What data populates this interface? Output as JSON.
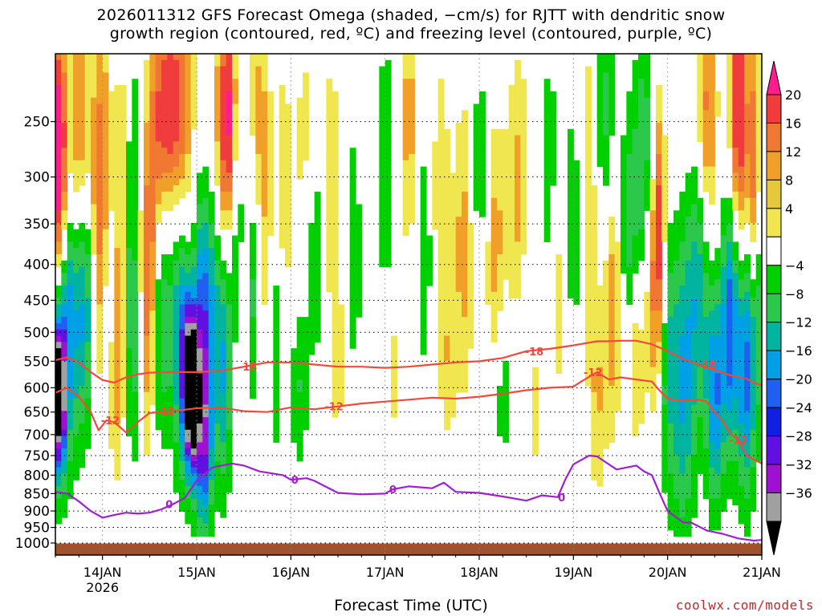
{
  "title": {
    "line1": "2026011312 GFS Forecast Omega (shaded, −cm/s) for RJTT with dendritic snow",
    "line2": "growth region (contoured, red, ºC) and freezing level (contoured, purple, ºC)"
  },
  "credit": "coolwx.com/models",
  "colors": {
    "dgz_contour": "#f04a3c",
    "freezing_contour": "#a020d0",
    "ground": "#a0522d",
    "grid": "#808080"
  },
  "chart_data": {
    "type": "heatmap",
    "xlabel": "Forecast Time (UTC)",
    "ylabel": "",
    "ylim": [
      1000,
      200
    ],
    "y_ticks": [
      250,
      300,
      350,
      400,
      450,
      500,
      550,
      600,
      650,
      700,
      750,
      800,
      850,
      900,
      950,
      1000
    ],
    "x_range_hours": [
      0,
      180
    ],
    "x_ticks": [
      {
        "hour": 12,
        "label": "14JAN",
        "sublabel": "2026"
      },
      {
        "hour": 36,
        "label": "15JAN"
      },
      {
        "hour": 60,
        "label": "16JAN"
      },
      {
        "hour": 84,
        "label": "17JAN"
      },
      {
        "hour": 108,
        "label": "18JAN"
      },
      {
        "hour": 132,
        "label": "19JAN"
      },
      {
        "hour": 156,
        "label": "20JAN"
      },
      {
        "hour": 180,
        "label": "21JAN"
      }
    ],
    "colorbar": {
      "labels": [
        "20",
        "16",
        "12",
        "8",
        "4",
        "−4",
        "−8",
        "−12",
        "−16",
        "−20",
        "−24",
        "−28",
        "−32",
        "−36"
      ],
      "levels": [
        20,
        16,
        12,
        8,
        4,
        -4,
        -8,
        -12,
        -16,
        -20,
        -24,
        -28,
        -32,
        -36
      ],
      "colors": [
        "#ff1d8e",
        "#f03c3c",
        "#f07832",
        "#f0a028",
        "#e6c83c",
        "#f0e650",
        "#ffffff",
        "#00d000",
        "#2bc84c",
        "#00b4a0",
        "#00a0e6",
        "#2060f0",
        "#1020e0",
        "#6010e0",
        "#a010d0",
        "#a0a0a0",
        "#000000"
      ]
    },
    "contours": [
      {
        "name": "-18",
        "kind": "dgz",
        "labels_at_hours": [
          49,
          122,
          166
        ],
        "points": [
          [
            0,
            548
          ],
          [
            3,
            543
          ],
          [
            6,
            552
          ],
          [
            9,
            570
          ],
          [
            12,
            585
          ],
          [
            15,
            590
          ],
          [
            18,
            580
          ],
          [
            21,
            574
          ],
          [
            24,
            571
          ],
          [
            30,
            570
          ],
          [
            36,
            570
          ],
          [
            42,
            568
          ],
          [
            48,
            560
          ],
          [
            54,
            552
          ],
          [
            60,
            552
          ],
          [
            66,
            556
          ],
          [
            72,
            560
          ],
          [
            78,
            560
          ],
          [
            84,
            562
          ],
          [
            90,
            560
          ],
          [
            96,
            556
          ],
          [
            102,
            552
          ],
          [
            108,
            550
          ],
          [
            114,
            544
          ],
          [
            120,
            532
          ],
          [
            126,
            528
          ],
          [
            132,
            522
          ],
          [
            138,
            515
          ],
          [
            141,
            515
          ],
          [
            144,
            514
          ],
          [
            148,
            514
          ],
          [
            152,
            520
          ],
          [
            156,
            532
          ],
          [
            160,
            546
          ],
          [
            164,
            556
          ],
          [
            168,
            566
          ],
          [
            172,
            576
          ],
          [
            176,
            582
          ],
          [
            178,
            590
          ],
          [
            180,
            595
          ]
        ]
      },
      {
        "name": "-12",
        "kind": "dgz",
        "labels_at_hours": [
          14,
          28,
          71,
          137,
          174
        ],
        "points": [
          [
            0,
            610
          ],
          [
            3,
            600
          ],
          [
            6,
            618
          ],
          [
            9,
            650
          ],
          [
            11,
            690
          ],
          [
            13,
            668
          ],
          [
            15,
            672
          ],
          [
            18,
            695
          ],
          [
            21,
            672
          ],
          [
            24,
            652
          ],
          [
            30,
            648
          ],
          [
            36,
            642
          ],
          [
            42,
            640
          ],
          [
            48,
            648
          ],
          [
            54,
            650
          ],
          [
            60,
            640
          ],
          [
            66,
            644
          ],
          [
            72,
            638
          ],
          [
            78,
            632
          ],
          [
            84,
            628
          ],
          [
            90,
            624
          ],
          [
            96,
            620
          ],
          [
            102,
            622
          ],
          [
            108,
            618
          ],
          [
            114,
            612
          ],
          [
            120,
            605
          ],
          [
            126,
            600
          ],
          [
            132,
            598
          ],
          [
            134,
            588
          ],
          [
            138,
            570
          ],
          [
            141,
            584
          ],
          [
            144,
            580
          ],
          [
            148,
            584
          ],
          [
            152,
            588
          ],
          [
            154,
            606
          ],
          [
            156,
            622
          ],
          [
            160,
            626
          ],
          [
            164,
            624
          ],
          [
            166,
            628
          ],
          [
            167,
            640
          ],
          [
            168,
            650
          ],
          [
            170,
            668
          ],
          [
            172,
            698
          ],
          [
            174,
            712
          ],
          [
            176,
            748
          ],
          [
            178,
            760
          ],
          [
            180,
            770
          ]
        ]
      },
      {
        "name": "0",
        "kind": "freezing",
        "labels_at_hours": [
          29,
          61,
          86,
          129
        ],
        "points": [
          [
            0,
            845
          ],
          [
            3,
            850
          ],
          [
            6,
            872
          ],
          [
            9,
            900
          ],
          [
            12,
            920
          ],
          [
            15,
            912
          ],
          [
            18,
            905
          ],
          [
            21,
            908
          ],
          [
            24,
            905
          ],
          [
            27,
            895
          ],
          [
            30,
            880
          ],
          [
            33,
            862
          ],
          [
            36,
            815
          ],
          [
            40,
            780
          ],
          [
            45,
            770
          ],
          [
            48,
            775
          ],
          [
            52,
            790
          ],
          [
            58,
            800
          ],
          [
            60,
            812
          ],
          [
            64,
            808
          ],
          [
            66,
            815
          ],
          [
            72,
            848
          ],
          [
            78,
            852
          ],
          [
            84,
            850
          ],
          [
            86,
            838
          ],
          [
            90,
            830
          ],
          [
            96,
            835
          ],
          [
            99,
            820
          ],
          [
            102,
            845
          ],
          [
            108,
            848
          ],
          [
            114,
            858
          ],
          [
            120,
            870
          ],
          [
            124,
            855
          ],
          [
            128,
            860
          ],
          [
            130,
            810
          ],
          [
            132,
            772
          ],
          [
            136,
            750
          ],
          [
            138,
            752
          ],
          [
            140,
            765
          ],
          [
            143,
            785
          ],
          [
            148,
            775
          ],
          [
            150,
            790
          ],
          [
            152,
            800
          ],
          [
            154,
            850
          ],
          [
            156,
            900
          ],
          [
            160,
            935
          ],
          [
            162,
            935
          ],
          [
            166,
            960
          ],
          [
            170,
            970
          ],
          [
            174,
            985
          ],
          [
            178,
            992
          ],
          [
            180,
            990
          ]
        ]
      }
    ]
  }
}
